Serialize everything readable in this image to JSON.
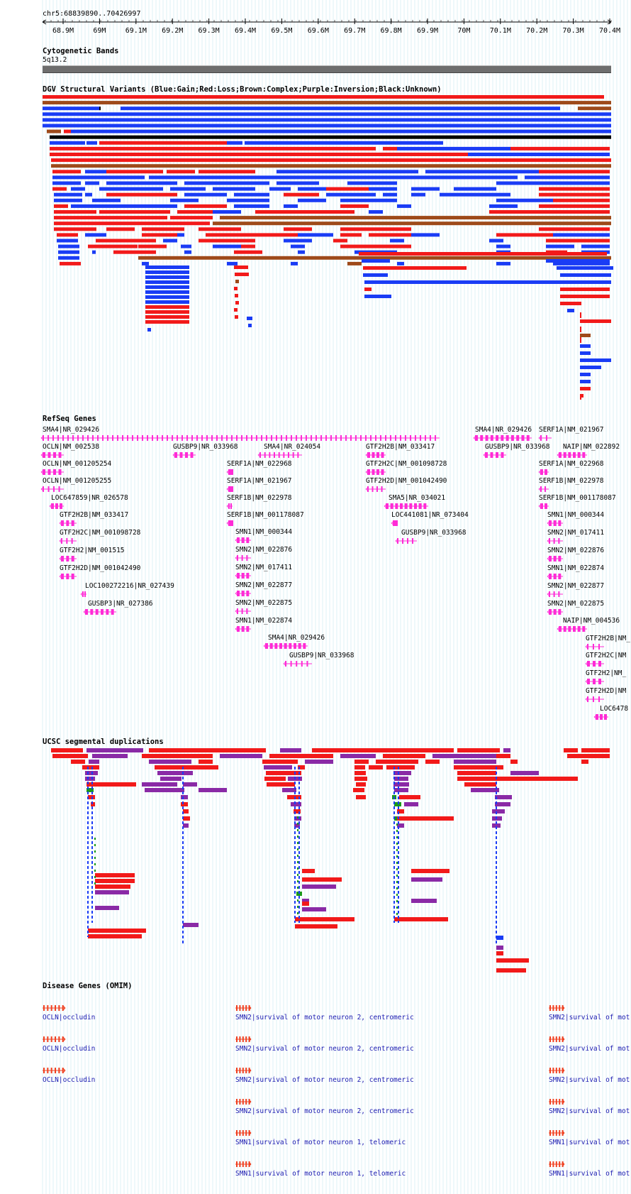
{
  "locus": "chr5:68839890..70426997",
  "ruler": {
    "tick_labels": [
      "68.9M",
      "69M",
      "69.1M",
      "69.2M",
      "69.3M",
      "69.4M",
      "69.5M",
      "69.6M",
      "69.7M",
      "69.8M",
      "69.9M",
      "70M",
      "70.1M",
      "70.2M",
      "70.3M",
      "70.4M"
    ]
  },
  "colors": {
    "gain": "#1a3cf5",
    "loss": "#f21a1a",
    "complex": "#9e4a1a",
    "inversion": "#8a2aa6",
    "unknown": "#000000",
    "gene": "#ff2bd6",
    "omim_gene": "#f04020",
    "grid": "#9ad2e6",
    "band": "#707070",
    "segdup_green": "#1a9a1a"
  },
  "tracks": {
    "cytoband": {
      "title": "Cytogenetic Bands",
      "band_label": "5q13.2"
    },
    "dgv": {
      "title": "DGV Structural Variants (Blue:Gain;Red:Loss;Brown:Complex;Purple:Inversion;Black:Unknown)"
    },
    "refseq": {
      "title": "RefSeq Genes",
      "genes": [
        "SMA4|NR_029426",
        "OCLN|NM_002538",
        "OCLN|NM_001205254",
        "OCLN|NM_001205255",
        "LOC647859|NR_026578",
        "GTF2H2B|NM_033417",
        "GTF2H2C|NM_001098728",
        "GTF2H2|NM_001515",
        "GTF2H2D|NM_001042490",
        "LOC100272216|NR_027439",
        "GUSBP3|NR_027386",
        "GUSBP9|NR_033968",
        "SMA4|NR_024054",
        "SERF1A|NM_022968",
        "SERF1A|NM_021967",
        "SERF1B|NM_022978",
        "SERF1B|NM_001178087",
        "SMN1|NM_000344",
        "SMN2|NM_022876",
        "SMN2|NM_017411",
        "SMN2|NM_022877",
        "SMN2|NM_022875",
        "SMN1|NM_022874",
        "SMA4|NR_029426",
        "GUSBP9|NR_033968",
        "GTF2H2B|NM_033417",
        "GTF2H2C|NM_001098728",
        "GTF2H2D|NM_001042490",
        "SMA5|NR_034021",
        "LOC441081|NR_073404",
        "GUSBP9|NR_033968",
        "SMA4|NR_029426",
        "GUSBP9|NR_033968",
        "SERF1A|NM_021967",
        "NAIP|NM_022892",
        "SERF1A|NM_022968",
        "SERF1B|NM_022978",
        "SERF1B|NM_001178087",
        "SMN1|NM_000344",
        "SMN2|NM_017411",
        "SMN2|NM_022876",
        "SMN1|NM_022874",
        "SMN2|NM_022877",
        "SMN2|NM_022875",
        "NAIP|NM_004536",
        "GTF2H2B|NM_",
        "GTF2H2C|NM",
        "GTF2H2|NM_",
        "GTF2H2D|NM",
        "LOC6478"
      ]
    },
    "segdup": {
      "title": "UCSC segmental duplications"
    },
    "omim": {
      "title": "Disease Genes (OMIM)",
      "labels": [
        "OCLN|occludin",
        "OCLN|occludin",
        "OCLN|occludin",
        "SMN2|survival of motor neuron 2, centromeric",
        "SMN2|survival of motor neuron 2, centromeric",
        "SMN2|survival of motor neuron 2, centromeric",
        "SMN2|survival of motor neuron 2, centromeric",
        "SMN1|survival of motor neuron 1, telomeric",
        "SMN1|survival of motor neuron 1, telomeric",
        "SMN2|survival of mot",
        "SMN2|survival of mot",
        "SMN2|survival of mot",
        "SMN2|survival of mot",
        "SMN1|survival of mot",
        "SMN1|survival of mot"
      ]
    }
  }
}
